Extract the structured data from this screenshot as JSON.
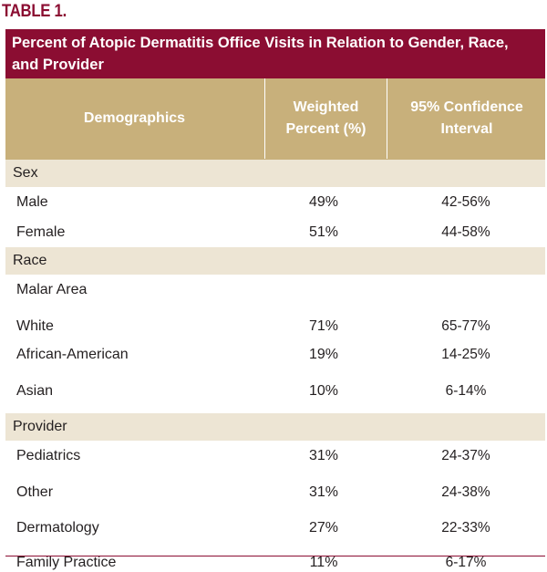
{
  "table_label": "TABLE 1.",
  "title": "Percent of Atopic Dermatitis Office Visits in Relation to Gender, Race, and Provider",
  "columns": {
    "demographics": "Demographics",
    "weighted_percent": "Weighted Percent (%)",
    "confidence_interval": "95% Confidence Interval"
  },
  "sections": {
    "sex": "Sex",
    "race": "Race",
    "provider": "Provider"
  },
  "rows": {
    "male": {
      "label": "Male",
      "pct": "49%",
      "ci": "42-56%"
    },
    "female": {
      "label": "Female",
      "pct": "51%",
      "ci": "44-58%"
    },
    "malar_area": {
      "label": "Malar Area"
    },
    "white": {
      "label": "White",
      "pct": "71%",
      "ci": "65-77%"
    },
    "african_american": {
      "label": "African-American",
      "pct": "19%",
      "ci": "14-25%"
    },
    "asian": {
      "label": "Asian",
      "pct": "10%",
      "ci": "6-14%"
    },
    "pediatrics": {
      "label": "Pediatrics",
      "pct": "31%",
      "ci": "24-37%"
    },
    "other": {
      "label": "Other",
      "pct": "31%",
      "ci": "24-38%"
    },
    "dermatology": {
      "label": "Dermatology",
      "pct": "27%",
      "ci": "22-33%"
    },
    "family_practice": {
      "label": "Family Practice",
      "pct": "11%",
      "ci": "6-17%"
    }
  },
  "colors": {
    "title_bg": "#8b0d32",
    "header_bg": "#c8b07b",
    "section_bg": "#ede5d4"
  }
}
